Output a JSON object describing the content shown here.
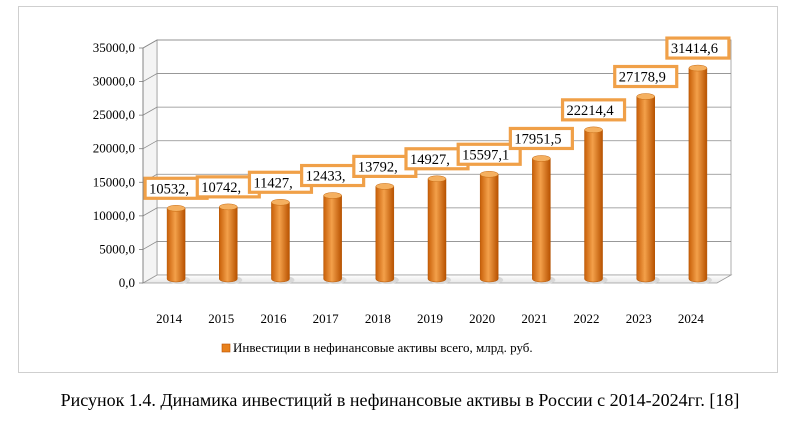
{
  "caption": "Рисунок 1.4. Динамика инвестиций в нефинансовые активы в России с 2014-2024гг. [18]",
  "chart_data": {
    "type": "bar",
    "categories": [
      "2014",
      "2015",
      "2016",
      "2017",
      "2018",
      "2019",
      "2020",
      "2021",
      "2022",
      "2023",
      "2024"
    ],
    "series": [
      {
        "name": "Инвестиции в нефинансовые активы всего, млрд. руб.",
        "values": [
          10532,
          10742,
          11427,
          12433,
          13792,
          14927,
          15597.1,
          17951.5,
          22214.4,
          27178.9,
          31414.6
        ],
        "color": "#e8811c"
      }
    ],
    "data_labels": [
      "10532,",
      "10742,",
      "11427,",
      "12433,",
      "13792,",
      "14927,",
      "15597,1",
      "17951,5",
      "22214,4",
      "27178,9",
      "31414,6"
    ],
    "label_border_color": "#f0a048",
    "y_ticks": [
      "0,0",
      "5000,0",
      "10000,0",
      "15000,0",
      "20000,0",
      "25000,0",
      "30000,0",
      "35000,0"
    ],
    "ylim": [
      0,
      35000
    ],
    "y_step": 5000,
    "grid": true,
    "legend_position": "bottom",
    "three_d": true
  }
}
